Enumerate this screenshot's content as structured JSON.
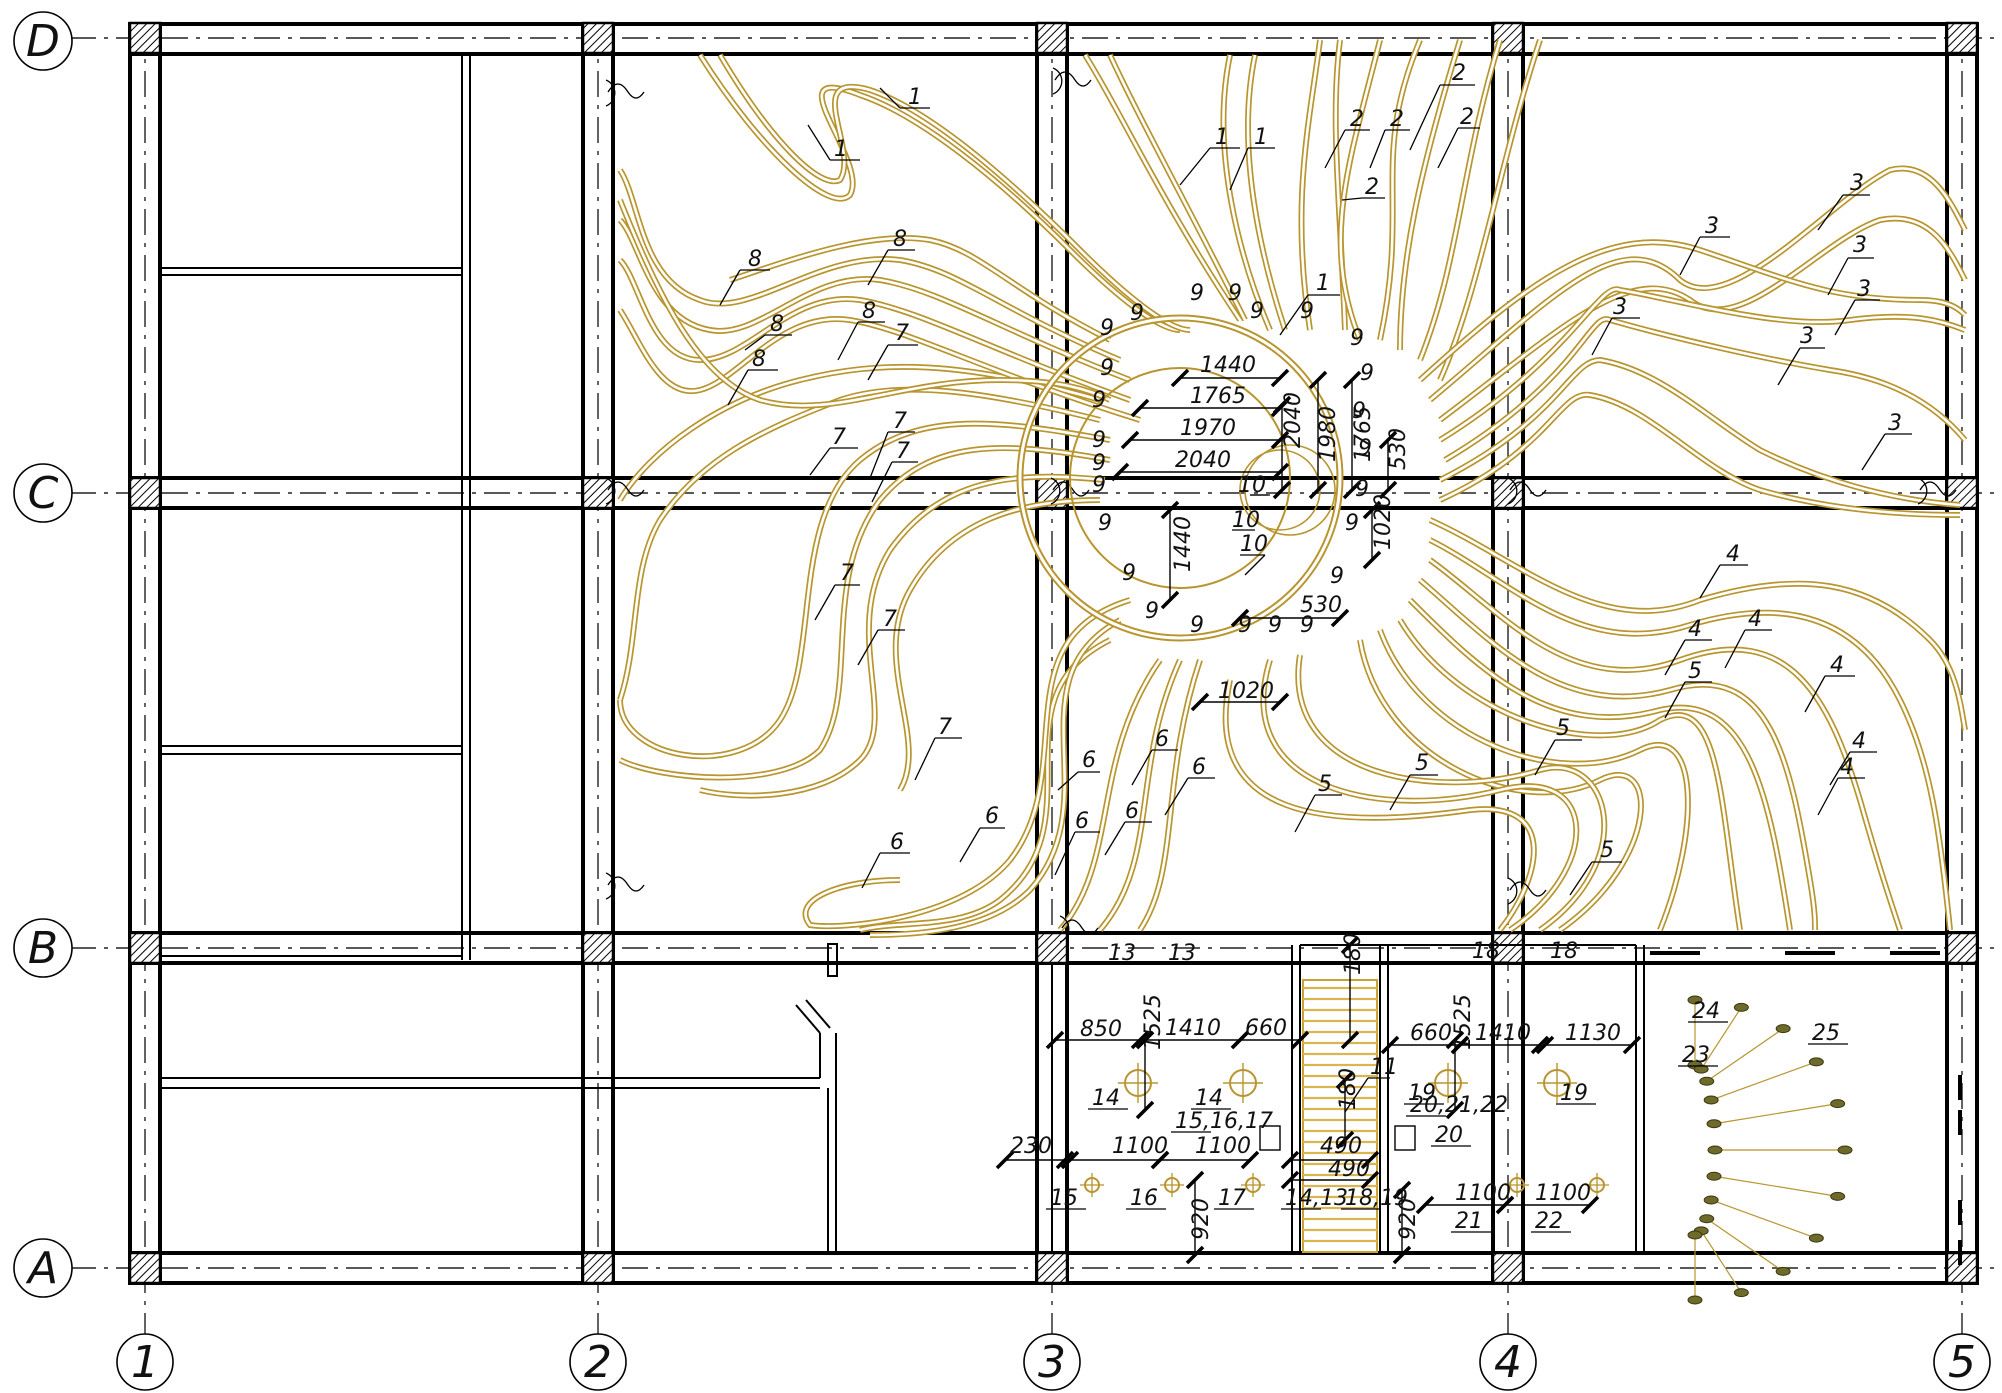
{
  "axes": {
    "columns": [
      "1",
      "2",
      "3",
      "4",
      "5"
    ],
    "rows": [
      "D",
      "C",
      "B",
      "A"
    ]
  },
  "colors": {
    "cable": "#b8952e",
    "lines": "#000000",
    "stair": "#d9b64f"
  },
  "circuit_labels": [
    "1",
    "2",
    "3",
    "4",
    "5",
    "6",
    "7",
    "8",
    "9",
    "10",
    "11"
  ],
  "fixture_labels": [
    "13",
    "14",
    "15",
    "16",
    "17",
    "18",
    "19",
    "20",
    "21",
    "22",
    "23",
    "24",
    "25"
  ],
  "combined_labels": [
    "15,16,17",
    "20,21,22",
    "14,13",
    "18,19"
  ],
  "dimensions": [
    "1440",
    "1765",
    "1970",
    "2040",
    "2040",
    "1980",
    "1765",
    "530",
    "1020",
    "1440",
    "530",
    "1020",
    "850",
    "1525",
    "1410",
    "660",
    "660",
    "1525",
    "1410",
    "1130",
    "180",
    "180",
    "230",
    "1100",
    "1100",
    "490",
    "490",
    "920",
    "920",
    "1100",
    "1100"
  ]
}
